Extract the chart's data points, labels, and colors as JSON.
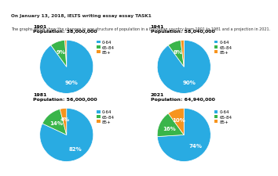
{
  "charts": [
    {
      "year": "1901",
      "population": "Population: 38,000,000",
      "values": [
        90,
        9,
        1
      ],
      "startangle": 90
    },
    {
      "year": "1941",
      "population": "Population: 58,040,000",
      "values": [
        90,
        8,
        2
      ],
      "startangle": 90
    },
    {
      "year": "1981",
      "population": "Population: 56,000,000",
      "values": [
        82,
        14,
        4
      ],
      "startangle": 90
    },
    {
      "year": "2021",
      "population": "Population: 64,940,000",
      "values": [
        74,
        16,
        10
      ],
      "startangle": 90
    }
  ],
  "colors": [
    "#29ABE2",
    "#39B54A",
    "#F7941D"
  ],
  "legend_labels": [
    "0-64",
    "65-84",
    "85+"
  ],
  "header_text": "On January 13, 2018, IELTS writing essay essay TASK1",
  "subtitle": "The graphs below show the changes in age structure of population in a European country from 1901 to 1981 and a projection in 2021.",
  "header_bg": "#e0e0e0",
  "title_fontsize": 4.5,
  "pct_fontsize": 5.0,
  "legend_fontsize": 4.0
}
